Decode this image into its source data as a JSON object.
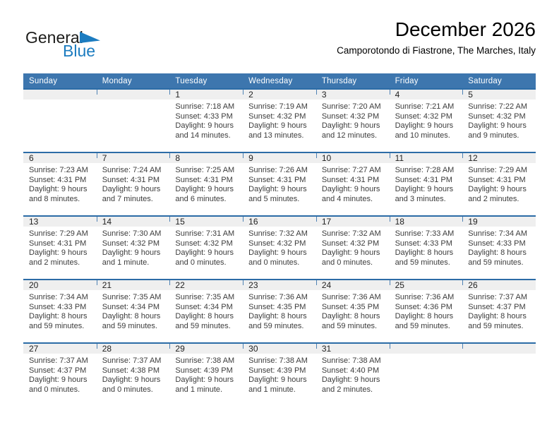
{
  "logo": {
    "general": "General",
    "blue": "Blue"
  },
  "header": {
    "month_year": "December 2026",
    "location": "Camporotondo di Fiastrone, The Marches, Italy"
  },
  "weekdays": [
    "Sunday",
    "Monday",
    "Tuesday",
    "Wednesday",
    "Thursday",
    "Friday",
    "Saturday"
  ],
  "colors": {
    "header_blue": "#3d76ae",
    "separator_blue": "#2c6ca6",
    "band_gray": "#efefef",
    "logo_blue": "#1c7cc0"
  },
  "weeks": [
    {
      "cells": [
        {
          "day": "",
          "lines": []
        },
        {
          "day": "",
          "lines": []
        },
        {
          "day": "1",
          "lines": [
            "Sunrise: 7:18 AM",
            "Sunset: 4:33 PM",
            "Daylight: 9 hours",
            "and 14 minutes."
          ]
        },
        {
          "day": "2",
          "lines": [
            "Sunrise: 7:19 AM",
            "Sunset: 4:32 PM",
            "Daylight: 9 hours",
            "and 13 minutes."
          ]
        },
        {
          "day": "3",
          "lines": [
            "Sunrise: 7:20 AM",
            "Sunset: 4:32 PM",
            "Daylight: 9 hours",
            "and 12 minutes."
          ]
        },
        {
          "day": "4",
          "lines": [
            "Sunrise: 7:21 AM",
            "Sunset: 4:32 PM",
            "Daylight: 9 hours",
            "and 10 minutes."
          ]
        },
        {
          "day": "5",
          "lines": [
            "Sunrise: 7:22 AM",
            "Sunset: 4:32 PM",
            "Daylight: 9 hours",
            "and 9 minutes."
          ]
        }
      ]
    },
    {
      "cells": [
        {
          "day": "6",
          "lines": [
            "Sunrise: 7:23 AM",
            "Sunset: 4:31 PM",
            "Daylight: 9 hours",
            "and 8 minutes."
          ]
        },
        {
          "day": "7",
          "lines": [
            "Sunrise: 7:24 AM",
            "Sunset: 4:31 PM",
            "Daylight: 9 hours",
            "and 7 minutes."
          ]
        },
        {
          "day": "8",
          "lines": [
            "Sunrise: 7:25 AM",
            "Sunset: 4:31 PM",
            "Daylight: 9 hours",
            "and 6 minutes."
          ]
        },
        {
          "day": "9",
          "lines": [
            "Sunrise: 7:26 AM",
            "Sunset: 4:31 PM",
            "Daylight: 9 hours",
            "and 5 minutes."
          ]
        },
        {
          "day": "10",
          "lines": [
            "Sunrise: 7:27 AM",
            "Sunset: 4:31 PM",
            "Daylight: 9 hours",
            "and 4 minutes."
          ]
        },
        {
          "day": "11",
          "lines": [
            "Sunrise: 7:28 AM",
            "Sunset: 4:31 PM",
            "Daylight: 9 hours",
            "and 3 minutes."
          ]
        },
        {
          "day": "12",
          "lines": [
            "Sunrise: 7:29 AM",
            "Sunset: 4:31 PM",
            "Daylight: 9 hours",
            "and 2 minutes."
          ]
        }
      ]
    },
    {
      "cells": [
        {
          "day": "13",
          "lines": [
            "Sunrise: 7:29 AM",
            "Sunset: 4:31 PM",
            "Daylight: 9 hours",
            "and 2 minutes."
          ]
        },
        {
          "day": "14",
          "lines": [
            "Sunrise: 7:30 AM",
            "Sunset: 4:32 PM",
            "Daylight: 9 hours",
            "and 1 minute."
          ]
        },
        {
          "day": "15",
          "lines": [
            "Sunrise: 7:31 AM",
            "Sunset: 4:32 PM",
            "Daylight: 9 hours",
            "and 0 minutes."
          ]
        },
        {
          "day": "16",
          "lines": [
            "Sunrise: 7:32 AM",
            "Sunset: 4:32 PM",
            "Daylight: 9 hours",
            "and 0 minutes."
          ]
        },
        {
          "day": "17",
          "lines": [
            "Sunrise: 7:32 AM",
            "Sunset: 4:32 PM",
            "Daylight: 9 hours",
            "and 0 minutes."
          ]
        },
        {
          "day": "18",
          "lines": [
            "Sunrise: 7:33 AM",
            "Sunset: 4:33 PM",
            "Daylight: 8 hours",
            "and 59 minutes."
          ]
        },
        {
          "day": "19",
          "lines": [
            "Sunrise: 7:34 AM",
            "Sunset: 4:33 PM",
            "Daylight: 8 hours",
            "and 59 minutes."
          ]
        }
      ]
    },
    {
      "cells": [
        {
          "day": "20",
          "lines": [
            "Sunrise: 7:34 AM",
            "Sunset: 4:33 PM",
            "Daylight: 8 hours",
            "and 59 minutes."
          ]
        },
        {
          "day": "21",
          "lines": [
            "Sunrise: 7:35 AM",
            "Sunset: 4:34 PM",
            "Daylight: 8 hours",
            "and 59 minutes."
          ]
        },
        {
          "day": "22",
          "lines": [
            "Sunrise: 7:35 AM",
            "Sunset: 4:34 PM",
            "Daylight: 8 hours",
            "and 59 minutes."
          ]
        },
        {
          "day": "23",
          "lines": [
            "Sunrise: 7:36 AM",
            "Sunset: 4:35 PM",
            "Daylight: 8 hours",
            "and 59 minutes."
          ]
        },
        {
          "day": "24",
          "lines": [
            "Sunrise: 7:36 AM",
            "Sunset: 4:35 PM",
            "Daylight: 8 hours",
            "and 59 minutes."
          ]
        },
        {
          "day": "25",
          "lines": [
            "Sunrise: 7:36 AM",
            "Sunset: 4:36 PM",
            "Daylight: 8 hours",
            "and 59 minutes."
          ]
        },
        {
          "day": "26",
          "lines": [
            "Sunrise: 7:37 AM",
            "Sunset: 4:37 PM",
            "Daylight: 8 hours",
            "and 59 minutes."
          ]
        }
      ]
    },
    {
      "cells": [
        {
          "day": "27",
          "lines": [
            "Sunrise: 7:37 AM",
            "Sunset: 4:37 PM",
            "Daylight: 9 hours",
            "and 0 minutes."
          ]
        },
        {
          "day": "28",
          "lines": [
            "Sunrise: 7:37 AM",
            "Sunset: 4:38 PM",
            "Daylight: 9 hours",
            "and 0 minutes."
          ]
        },
        {
          "day": "29",
          "lines": [
            "Sunrise: 7:38 AM",
            "Sunset: 4:39 PM",
            "Daylight: 9 hours",
            "and 1 minute."
          ]
        },
        {
          "day": "30",
          "lines": [
            "Sunrise: 7:38 AM",
            "Sunset: 4:39 PM",
            "Daylight: 9 hours",
            "and 1 minute."
          ]
        },
        {
          "day": "31",
          "lines": [
            "Sunrise: 7:38 AM",
            "Sunset: 4:40 PM",
            "Daylight: 9 hours",
            "and 2 minutes."
          ]
        },
        {
          "day": "",
          "lines": []
        },
        {
          "day": "",
          "lines": []
        }
      ]
    }
  ]
}
